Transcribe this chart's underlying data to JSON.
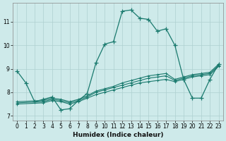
{
  "xlabel": "Humidex (Indice chaleur)",
  "background_color": "#ceeaea",
  "line_color": "#1a7a6e",
  "grid_color": "#aed0d0",
  "xlim": [
    -0.5,
    23.5
  ],
  "ylim": [
    6.8,
    11.8
  ],
  "yticks": [
    7,
    8,
    9,
    10,
    11
  ],
  "xticks": [
    0,
    1,
    2,
    3,
    4,
    5,
    6,
    7,
    8,
    9,
    10,
    11,
    12,
    13,
    14,
    15,
    16,
    17,
    18,
    19,
    20,
    21,
    22,
    23
  ],
  "series": {
    "main": {
      "x": [
        0,
        1,
        2,
        3,
        4,
        5,
        6,
        7,
        8,
        9,
        10,
        11,
        12,
        13,
        14,
        15,
        16,
        17,
        18,
        19,
        20,
        21,
        22,
        23
      ],
      "y": [
        8.9,
        8.4,
        7.6,
        7.7,
        7.8,
        7.25,
        7.3,
        7.65,
        7.95,
        9.25,
        10.05,
        10.15,
        11.45,
        11.5,
        11.15,
        11.1,
        10.6,
        10.7,
        10.0,
        8.55,
        7.75,
        7.75,
        8.55,
        9.2
      ]
    },
    "trend1": {
      "x": [
        0,
        3,
        4,
        5,
        6,
        7,
        8,
        9,
        10,
        11,
        12,
        13,
        14,
        15,
        16,
        17,
        18,
        19,
        20,
        21,
        22,
        23
      ],
      "y": [
        7.6,
        7.65,
        7.75,
        7.7,
        7.6,
        7.7,
        7.85,
        8.05,
        8.15,
        8.25,
        8.4,
        8.5,
        8.6,
        8.7,
        8.75,
        8.8,
        8.55,
        8.65,
        8.75,
        8.8,
        8.85,
        9.2
      ]
    },
    "trend2": {
      "x": [
        0,
        3,
        4,
        5,
        6,
        7,
        8,
        9,
        10,
        11,
        12,
        13,
        14,
        15,
        16,
        17,
        18,
        19,
        20,
        21,
        22,
        23
      ],
      "y": [
        7.55,
        7.6,
        7.7,
        7.65,
        7.55,
        7.65,
        7.8,
        8.0,
        8.1,
        8.2,
        8.3,
        8.4,
        8.5,
        8.6,
        8.65,
        8.7,
        8.5,
        8.6,
        8.7,
        8.75,
        8.8,
        9.15
      ]
    },
    "trend3": {
      "x": [
        0,
        3,
        4,
        5,
        6,
        7,
        8,
        9,
        10,
        11,
        12,
        13,
        14,
        15,
        16,
        17,
        18,
        19,
        20,
        21,
        22,
        23
      ],
      "y": [
        7.5,
        7.55,
        7.65,
        7.6,
        7.5,
        7.6,
        7.75,
        7.9,
        8.0,
        8.1,
        8.2,
        8.3,
        8.4,
        8.45,
        8.5,
        8.55,
        8.45,
        8.55,
        8.65,
        8.7,
        8.75,
        9.1
      ]
    }
  }
}
